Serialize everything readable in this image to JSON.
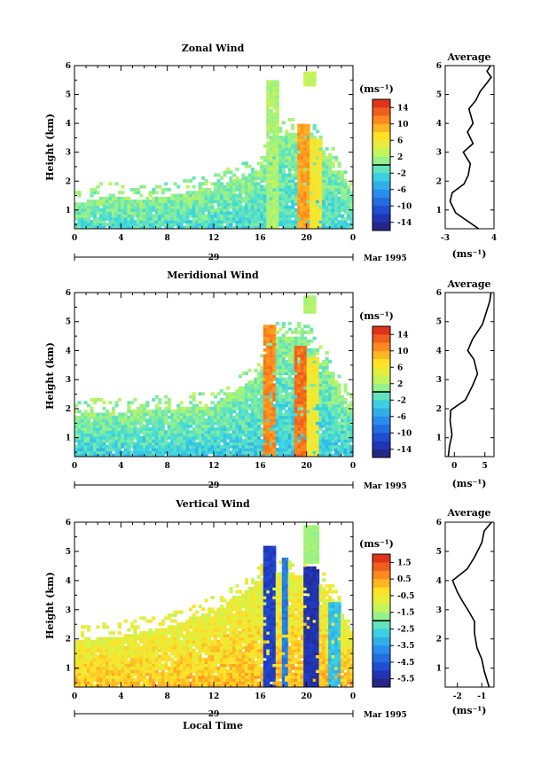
{
  "chart_data": [
    {
      "type": "heatmap",
      "title": "Zonal Wind",
      "ylabel": "Height (km)",
      "xlabel": "",
      "x_ticks": [
        "0",
        "4",
        "8",
        "12",
        "16",
        "20",
        "0"
      ],
      "y_ticks": [
        "1",
        "2",
        "3",
        "4",
        "5",
        "6"
      ],
      "xlim": [
        0,
        24
      ],
      "ylim": [
        0.35,
        6
      ],
      "date_label": "29",
      "month_label": "Mar 1995",
      "colorbar": {
        "unit": "(ms⁻¹)",
        "ticks": [
          "14",
          "10",
          "6",
          "2",
          "-2",
          "-6",
          "-10",
          "-14"
        ],
        "range": [
          -16,
          16
        ]
      },
      "features": {
        "fill_top_km": [
          [
            0,
            1.2
          ],
          [
            3,
            1.5
          ],
          [
            5,
            1.3
          ],
          [
            8,
            1.5
          ],
          [
            11,
            1.7
          ],
          [
            13,
            1.9
          ],
          [
            16,
            2.4
          ],
          [
            17,
            3.5
          ],
          [
            20,
            3.8
          ],
          [
            21.5,
            3.0
          ],
          [
            23,
            2.3
          ],
          [
            24,
            1.6
          ]
        ],
        "columns": [
          {
            "x0": 16.5,
            "x1": 17.6,
            "top": 5.5,
            "value": 2
          },
          {
            "x0": 19.3,
            "x1": 20.3,
            "top": 4.0,
            "value": 10
          },
          {
            "x0": 20.3,
            "x1": 21.2,
            "top": 3.5,
            "value": 6
          }
        ],
        "box": {
          "x0": 19.8,
          "x1": 20.9,
          "y0": 5.3,
          "y1": 5.8,
          "value": 3
        },
        "base_value": -3,
        "high_value": 1
      },
      "average_profile": {
        "title": "Average",
        "unit_label": "(ms⁻¹)",
        "x_ticks": [
          "-3",
          "4"
        ],
        "xlim": [
          -3,
          4
        ],
        "values": [
          [
            1.8,
            0.35
          ],
          [
            -1.5,
            0.9
          ],
          [
            -2.3,
            1.3
          ],
          [
            -2.0,
            1.6
          ],
          [
            -0.3,
            1.9
          ],
          [
            0.3,
            2.2
          ],
          [
            0.6,
            2.6
          ],
          [
            -0.4,
            3.0
          ],
          [
            1.0,
            3.3
          ],
          [
            0.2,
            3.7
          ],
          [
            1.0,
            4.0
          ],
          [
            0.4,
            4.5
          ],
          [
            1.4,
            4.8
          ],
          [
            2.0,
            5.1
          ],
          [
            3.0,
            5.4
          ],
          [
            3.6,
            5.6
          ],
          [
            3.0,
            5.8
          ],
          [
            3.5,
            6.0
          ]
        ]
      }
    },
    {
      "type": "heatmap",
      "title": "Meridional Wind",
      "ylabel": "Height (km)",
      "xlabel": "",
      "x_ticks": [
        "0",
        "4",
        "8",
        "12",
        "16",
        "20",
        "0"
      ],
      "y_ticks": [
        "1",
        "2",
        "3",
        "4",
        "5",
        "6"
      ],
      "xlim": [
        0,
        24
      ],
      "ylim": [
        0.35,
        6
      ],
      "date_label": "29",
      "month_label": "Mar 1995",
      "colorbar": {
        "unit": "(ms⁻¹)",
        "ticks": [
          "14",
          "10",
          "6",
          "2",
          "-2",
          "-6",
          "-10",
          "-14"
        ],
        "range": [
          -16,
          16
        ]
      },
      "features": {
        "fill_top_km": [
          [
            0,
            1.8
          ],
          [
            4,
            1.9
          ],
          [
            8,
            2.0
          ],
          [
            12,
            2.1
          ],
          [
            16,
            3.2
          ],
          [
            17,
            4.5
          ],
          [
            20,
            4.5
          ],
          [
            21.5,
            3.6
          ],
          [
            23,
            2.6
          ],
          [
            24,
            1.9
          ]
        ],
        "columns": [
          {
            "x0": 16.3,
            "x1": 17.3,
            "top": 4.9,
            "value": 11
          },
          {
            "x0": 19.0,
            "x1": 20.0,
            "top": 4.2,
            "value": 12
          },
          {
            "x0": 20.0,
            "x1": 21.0,
            "top": 3.8,
            "value": 6
          }
        ],
        "box": {
          "x0": 19.8,
          "x1": 20.9,
          "y0": 5.3,
          "y1": 5.9,
          "value": 2
        },
        "base_value": -4,
        "high_value": 1
      },
      "average_profile": {
        "title": "Average",
        "unit_label": "(ms⁻¹)",
        "x_ticks": [
          "0",
          "5"
        ],
        "xlim": [
          -1.5,
          6.5
        ],
        "values": [
          [
            -1.0,
            0.35
          ],
          [
            -0.8,
            0.7
          ],
          [
            -0.4,
            1.1
          ],
          [
            -0.7,
            1.6
          ],
          [
            -0.6,
            1.95
          ],
          [
            1.8,
            2.3
          ],
          [
            3.0,
            2.8
          ],
          [
            3.8,
            3.2
          ],
          [
            3.2,
            3.7
          ],
          [
            2.2,
            4.0
          ],
          [
            3.0,
            4.4
          ],
          [
            4.6,
            4.9
          ],
          [
            5.2,
            5.3
          ],
          [
            5.8,
            5.7
          ],
          [
            6.0,
            6.0
          ]
        ]
      }
    },
    {
      "type": "heatmap",
      "title": "Vertical Wind",
      "ylabel": "Height (km)",
      "xlabel": "Local Time",
      "x_ticks": [
        "0",
        "4",
        "8",
        "12",
        "16",
        "20",
        "0"
      ],
      "y_ticks": [
        "1",
        "2",
        "3",
        "4",
        "5",
        "6"
      ],
      "xlim": [
        0,
        24
      ],
      "ylim": [
        0.35,
        6
      ],
      "date_label": "29",
      "month_label": "Mar 1995",
      "colorbar": {
        "unit": "(ms⁻¹)",
        "ticks": [
          "1.5",
          "0.5",
          "-0.5",
          "-1.5",
          "-2.5",
          "-3.5",
          "-4.5",
          "-5.5"
        ],
        "range": [
          -6,
          2
        ]
      },
      "features": {
        "fill_top_km": [
          [
            0,
            1.9
          ],
          [
            4,
            2.1
          ],
          [
            8,
            2.4
          ],
          [
            12,
            3.0
          ],
          [
            15,
            3.6
          ],
          [
            16,
            4.0
          ],
          [
            17,
            4.3
          ],
          [
            20,
            4.2
          ],
          [
            21.5,
            3.8
          ],
          [
            23,
            2.9
          ],
          [
            24,
            2.2
          ]
        ],
        "columns": [
          {
            "x0": 16.3,
            "x1": 17.3,
            "top": 5.2,
            "value": -5.0
          },
          {
            "x0": 17.8,
            "x1": 18.5,
            "top": 4.8,
            "value": -4.0
          },
          {
            "x0": 19.8,
            "x1": 21.0,
            "top": 4.5,
            "value": -5.3
          },
          {
            "x0": 22.0,
            "x1": 22.8,
            "top": 3.3,
            "value": -3.0
          }
        ],
        "box": {
          "x0": 19.8,
          "x1": 21.0,
          "y0": 4.6,
          "y1": 5.9,
          "value": -1.6
        },
        "base_value": 0.3,
        "high_value": -0.8
      },
      "average_profile": {
        "title": "Average",
        "unit_label": "(ms⁻¹)",
        "x_ticks": [
          "-2",
          "-1"
        ],
        "xlim": [
          -2.5,
          -0.5
        ],
        "values": [
          [
            -0.7,
            0.35
          ],
          [
            -0.9,
            0.9
          ],
          [
            -1.0,
            1.3
          ],
          [
            -1.2,
            1.7
          ],
          [
            -1.3,
            2.2
          ],
          [
            -1.3,
            2.6
          ],
          [
            -1.5,
            2.9
          ],
          [
            -1.8,
            3.3
          ],
          [
            -2.0,
            3.6
          ],
          [
            -2.2,
            4.0
          ],
          [
            -1.6,
            4.4
          ],
          [
            -1.3,
            4.8
          ],
          [
            -1.0,
            5.3
          ],
          [
            -0.9,
            5.7
          ],
          [
            -0.6,
            6.0
          ]
        ]
      }
    }
  ]
}
